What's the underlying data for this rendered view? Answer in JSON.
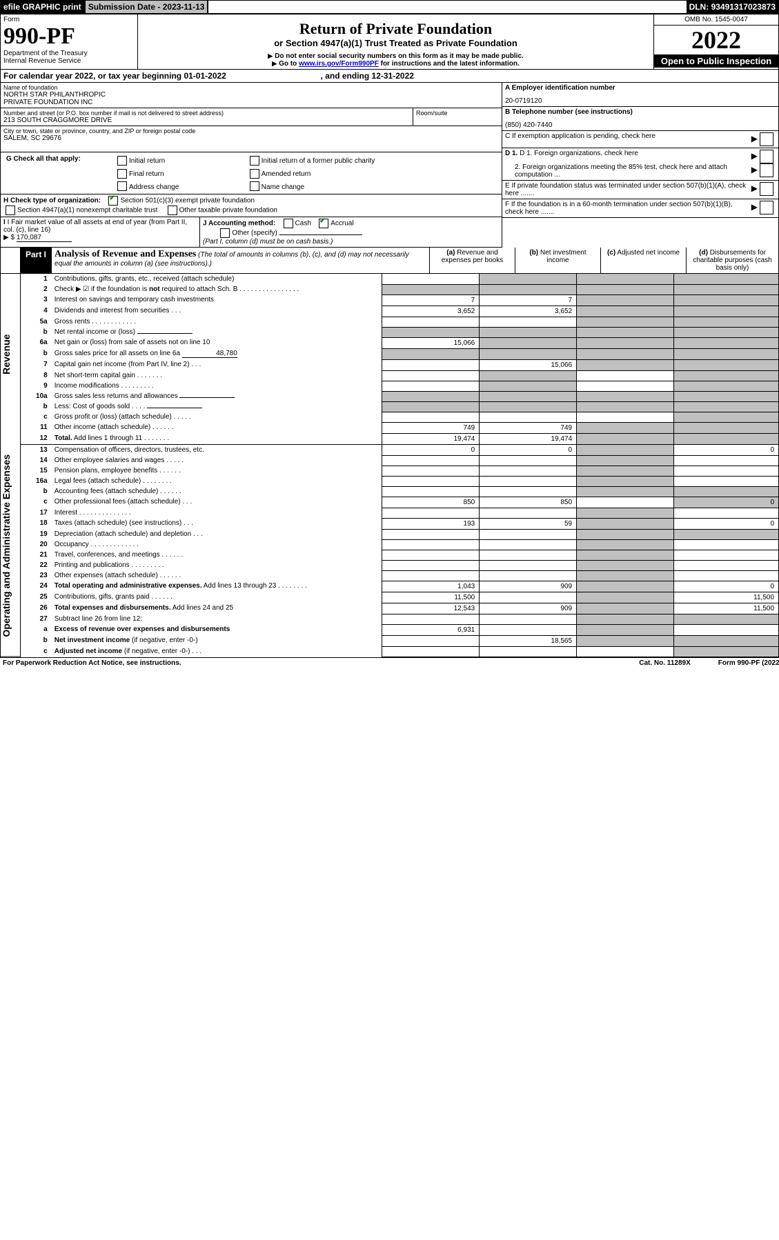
{
  "topbar": {
    "efile": "efile GRAPHIC print",
    "subdate_label": "Submission Date - ",
    "subdate": "2023-11-13",
    "dln_label": "DLN: ",
    "dln": "93491317023873"
  },
  "header": {
    "form_word": "Form",
    "form_num": "990-PF",
    "dept": "Department of the Treasury",
    "irs": "Internal Revenue Service",
    "title": "Return of Private Foundation",
    "subtitle": "or Section 4947(a)(1) Trust Treated as Private Foundation",
    "warn1": "Do not enter social security numbers on this form as it may be made public.",
    "warn2_pre": "Go to ",
    "warn2_link": "www.irs.gov/Form990PF",
    "warn2_post": " for instructions and the latest information.",
    "omb": "OMB No. 1545-0047",
    "year": "2022",
    "open": "Open to Public Inspection"
  },
  "cal": {
    "pre": "For calendar year 2022, or tax year beginning ",
    "begin": "01-01-2022",
    "mid": ", and ending ",
    "end": "12-31-2022"
  },
  "id": {
    "name_label": "Name of foundation",
    "name": "NORTH STAR PHILANTHROPIC\nPRIVATE FOUNDATION INC",
    "street_label": "Number and street (or P.O. box number if mail is not delivered to street address)",
    "street": "213 SOUTH CRAGGMORE DRIVE",
    "room_label": "Room/suite",
    "city_label": "City or town, state or province, country, and ZIP or foreign postal code",
    "city": "SALEM, SC  29676",
    "A_label": "A Employer identification number",
    "A": "20-0719120",
    "B_label": "B Telephone number (see instructions)",
    "B": "(850) 420-7440",
    "C": "C If exemption application is pending, check here",
    "D1": "D 1. Foreign organizations, check here",
    "D2": "2. Foreign organizations meeting the 85% test, check here and attach computation ...",
    "E": "E  If private foundation status was terminated under section 507(b)(1)(A), check here .......",
    "F": "F  If the foundation is in a 60-month termination under section 507(b)(1)(B), check here ......."
  },
  "G": {
    "label": "G Check all that apply:",
    "o1": "Initial return",
    "o2": "Initial return of a former public charity",
    "o3": "Final return",
    "o4": "Amended return",
    "o5": "Address change",
    "o6": "Name change"
  },
  "H": {
    "label": "H Check type of organization:",
    "o1": "Section 501(c)(3) exempt private foundation",
    "o2": "Section 4947(a)(1) nonexempt charitable trust",
    "o3": "Other taxable private foundation"
  },
  "I": {
    "label": "I Fair market value of all assets at end of year (from Part II, col. (c), line 16)",
    "arrow": "▶ $",
    "val": "170,087"
  },
  "J": {
    "label": "J Accounting method:",
    "o1": "Cash",
    "o2": "Accrual",
    "o3": "Other (specify)",
    "note": "(Part I, column (d) must be on cash basis.)"
  },
  "part1": {
    "label": "Part I",
    "title": "Analysis of Revenue and Expenses",
    "note": "(The total of amounts in columns (b), (c), and (d) may not necessarily equal the amounts in column (a) (see instructions).)",
    "col_a": "(a)   Revenue and expenses per books",
    "col_b": "(b)   Net investment income",
    "col_c": "(c)   Adjusted net income",
    "col_d": "(d)  Disbursements for charitable purposes (cash basis only)"
  },
  "sections": {
    "rev": "Revenue",
    "exp": "Operating and Administrative Expenses"
  },
  "rows": [
    {
      "n": "1",
      "t": "Contributions, gifts, grants, etc., received (attach schedule)"
    },
    {
      "n": "2",
      "t": "Check ▶ ☑ if the foundation is <b>not</b> required to attach Sch. B   .   .   .   .   .   .   .   .   .   .   .   .   .   .   .   ."
    },
    {
      "n": "3",
      "t": "Interest on savings and temporary cash investments",
      "a": "7",
      "b": "7"
    },
    {
      "n": "4",
      "t": "Dividends and interest from securities   .   .   .",
      "a": "3,652",
      "b": "3,652"
    },
    {
      "n": "5a",
      "t": "Gross rents   .   .   .   .   .   .   .   .   .   .   .   ."
    },
    {
      "n": "b",
      "t": "Net rental income or (loss)",
      "fill": true
    },
    {
      "n": "6a",
      "t": "Net gain or (loss) from sale of assets not on line 10",
      "a": "15,066"
    },
    {
      "n": "b",
      "t": "Gross sales price for all assets on line 6a",
      "fill": true,
      "fv": "48,780"
    },
    {
      "n": "7",
      "t": "Capital gain net income (from Part IV, line 2)   .   .   .",
      "b": "15,066"
    },
    {
      "n": "8",
      "t": "Net short-term capital gain   .   .   .   .   .   .   ."
    },
    {
      "n": "9",
      "t": "Income modifications   .   .   .   .   .   .   .   .   ."
    },
    {
      "n": "10a",
      "t": "Gross sales less returns and allowances",
      "fill": true
    },
    {
      "n": "b",
      "t": "Less: Cost of goods sold   .   .   .   .",
      "fill": true
    },
    {
      "n": "c",
      "t": "Gross profit or (loss) (attach schedule)   .   .   .   .   ."
    },
    {
      "n": "11",
      "t": "Other income (attach schedule)   .   .   .   .   .   .",
      "a": "749",
      "b": "749"
    },
    {
      "n": "12",
      "t": "<b>Total.</b> Add lines 1 through 11   .   .   .   .   .   .   .",
      "a": "19,474",
      "b": "19,474"
    },
    {
      "n": "13",
      "t": "Compensation of officers, directors, trustees, etc.",
      "a": "0",
      "b": "0",
      "d": "0"
    },
    {
      "n": "14",
      "t": "Other employee salaries and wages   .   .   .   .   ."
    },
    {
      "n": "15",
      "t": "Pension plans, employee benefits   .   .   .   .   .   ."
    },
    {
      "n": "16a",
      "t": "Legal fees (attach schedule)   .   .   .   .   .   .   .   ."
    },
    {
      "n": "b",
      "t": "Accounting fees (attach schedule)   .   .   .   .   .   ."
    },
    {
      "n": "c",
      "t": "Other professional fees (attach schedule)   .   .   .",
      "a": "850",
      "b": "850",
      "d": "0"
    },
    {
      "n": "17",
      "t": "Interest   .   .   .   .   .   .   .   .   .   .   .   .   .   ."
    },
    {
      "n": "18",
      "t": "Taxes (attach schedule) (see instructions)   .   .   .",
      "a": "193",
      "b": "59",
      "d": "0"
    },
    {
      "n": "19",
      "t": "Depreciation (attach schedule) and depletion   .   .   ."
    },
    {
      "n": "20",
      "t": "Occupancy   .   .   .   .   .   .   .   .   .   .   .   .   ."
    },
    {
      "n": "21",
      "t": "Travel, conferences, and meetings   .   .   .   .   .   ."
    },
    {
      "n": "22",
      "t": "Printing and publications   .   .   .   .   .   .   .   .   ."
    },
    {
      "n": "23",
      "t": "Other expenses (attach schedule)   .   .   .   .   .   ."
    },
    {
      "n": "24",
      "t": "<b>Total operating and administrative expenses.</b> Add lines 13 through 23   .   .   .   .   .   .   .   .",
      "a": "1,043",
      "b": "909",
      "d": "0"
    },
    {
      "n": "25",
      "t": "Contributions, gifts, grants paid   .   .   .   .   .   .",
      "a": "11,500",
      "d": "11,500"
    },
    {
      "n": "26",
      "t": "<b>Total expenses and disbursements.</b> Add lines 24 and 25",
      "a": "12,543",
      "b": "909",
      "d": "11,500"
    },
    {
      "n": "27",
      "t": "Subtract line 26 from line 12:"
    },
    {
      "n": "a",
      "t": "<b>Excess of revenue over expenses and disbursements</b>",
      "a": "6,931"
    },
    {
      "n": "b",
      "t": "<b>Net investment income</b> (if negative, enter -0-)",
      "b": "18,565"
    },
    {
      "n": "c",
      "t": "<b>Adjusted net income</b> (if negative, enter -0-)   .   .   ."
    }
  ],
  "footer": {
    "left": "For Paperwork Reduction Act Notice, see instructions.",
    "mid": "Cat. No. 11289X",
    "right": "Form 990-PF (2022)"
  },
  "colors": {
    "link": "#0000cc",
    "check": "#008000",
    "grey": "#c0c0c0"
  }
}
